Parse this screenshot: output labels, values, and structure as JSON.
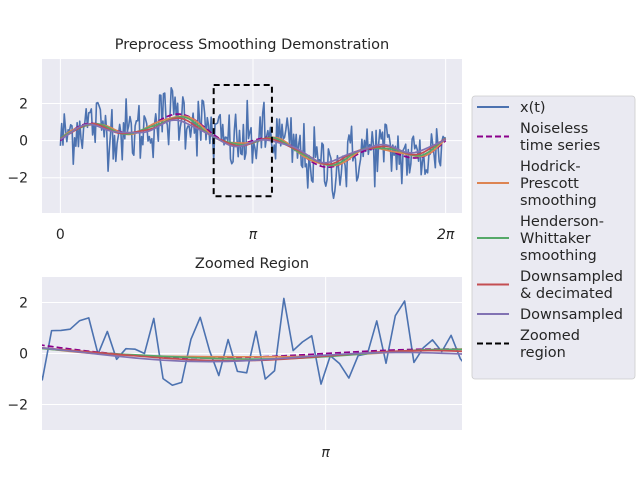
{
  "chart_data": [
    {
      "type": "line",
      "title": "Preprocess Smoothing Demonstration",
      "xlabel": "",
      "ylabel": "",
      "xlim": [
        -0.3,
        6.55
      ],
      "ylim": [
        -3.9,
        4.4
      ],
      "x_ticks": [
        {
          "value": 0,
          "label": "0"
        },
        {
          "value": 3.1416,
          "label": "π"
        },
        {
          "value": 6.2832,
          "label": "2π"
        }
      ],
      "y_ticks": [
        {
          "value": -2,
          "label": "−2"
        },
        {
          "value": 0,
          "label": "0"
        },
        {
          "value": 2,
          "label": "2"
        }
      ],
      "grid": true,
      "signal_model": {
        "x_start": 0,
        "x_end": 6.2832,
        "n_points": 300,
        "curve": "y = sin(x) + sin(4x)/2 (noiseless); noisy series adds noise of std ~0.9"
      },
      "series": [
        {
          "name": "x(t)",
          "color": "#4c72b0",
          "style": "solid",
          "role": "noisy"
        },
        {
          "name": "Noiseless time series",
          "color": "#8b008b",
          "style": "dashed",
          "role": "clean"
        },
        {
          "name": "Hodrick-Prescott smoothing",
          "color": "#dd8452",
          "style": "solid",
          "role": "smooth"
        },
        {
          "name": "Henderson-Whittaker smoothing",
          "color": "#55a868",
          "style": "solid",
          "role": "smooth"
        },
        {
          "name": "Downsampled & decimated",
          "color": "#c44e52",
          "style": "solid",
          "role": "smooth"
        },
        {
          "name": "Downsampled",
          "color": "#8172b3",
          "style": "solid",
          "role": "smooth"
        }
      ],
      "zoom_box": {
        "x": [
          2.5,
          3.45
        ],
        "y": [
          -3.0,
          3.0
        ],
        "label": "Zoomed region",
        "color": "#000000",
        "style": "dashed"
      }
    },
    {
      "type": "line",
      "title": "Zoomed Region",
      "xlabel": "",
      "ylabel": "",
      "xlim": [
        2.5,
        3.45
      ],
      "ylim": [
        -3.0,
        3.0
      ],
      "x_ticks": [
        {
          "value": 3.1416,
          "label": "π"
        }
      ],
      "y_ticks": [
        {
          "value": -2,
          "label": "−2"
        },
        {
          "value": 0,
          "label": "0"
        },
        {
          "value": 2,
          "label": "2"
        }
      ],
      "grid": true
    }
  ],
  "legend": {
    "placement": "right",
    "items": [
      {
        "lines": [
          "x(t)"
        ],
        "color": "#4c72b0",
        "style": "solid"
      },
      {
        "lines": [
          "Noiseless",
          "time series"
        ],
        "color": "#8b008b",
        "style": "dashed"
      },
      {
        "lines": [
          "Hodrick-",
          "Prescott",
          "smoothing"
        ],
        "color": "#dd8452",
        "style": "solid"
      },
      {
        "lines": [
          "Henderson-",
          "Whittaker",
          "smoothing"
        ],
        "color": "#55a868",
        "style": "solid"
      },
      {
        "lines": [
          "Downsampled",
          "& decimated"
        ],
        "color": "#c44e52",
        "style": "solid"
      },
      {
        "lines": [
          "Downsampled"
        ],
        "color": "#8172b3",
        "style": "solid"
      },
      {
        "lines": [
          "Zoomed",
          "region"
        ],
        "color": "#000000",
        "style": "dashed"
      }
    ]
  },
  "colors": {
    "axes_background": "#eaeaf2",
    "grid": "#ffffff",
    "text": "#262626"
  }
}
